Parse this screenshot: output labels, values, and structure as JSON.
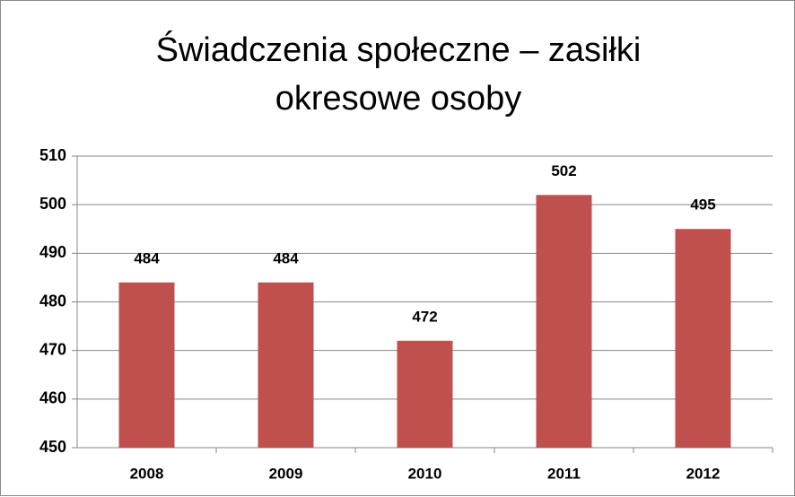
{
  "chart_data": {
    "type": "bar",
    "title": "Świadczenia społeczne – zasiłki okresowe osoby",
    "categories": [
      "2008",
      "2009",
      "2010",
      "2011",
      "2012"
    ],
    "values": [
      484,
      484,
      472,
      502,
      495
    ],
    "color": "#c0504d",
    "ylim": [
      450,
      510
    ],
    "yticks": [
      450,
      460,
      470,
      480,
      490,
      500,
      510
    ],
    "grid": true
  }
}
